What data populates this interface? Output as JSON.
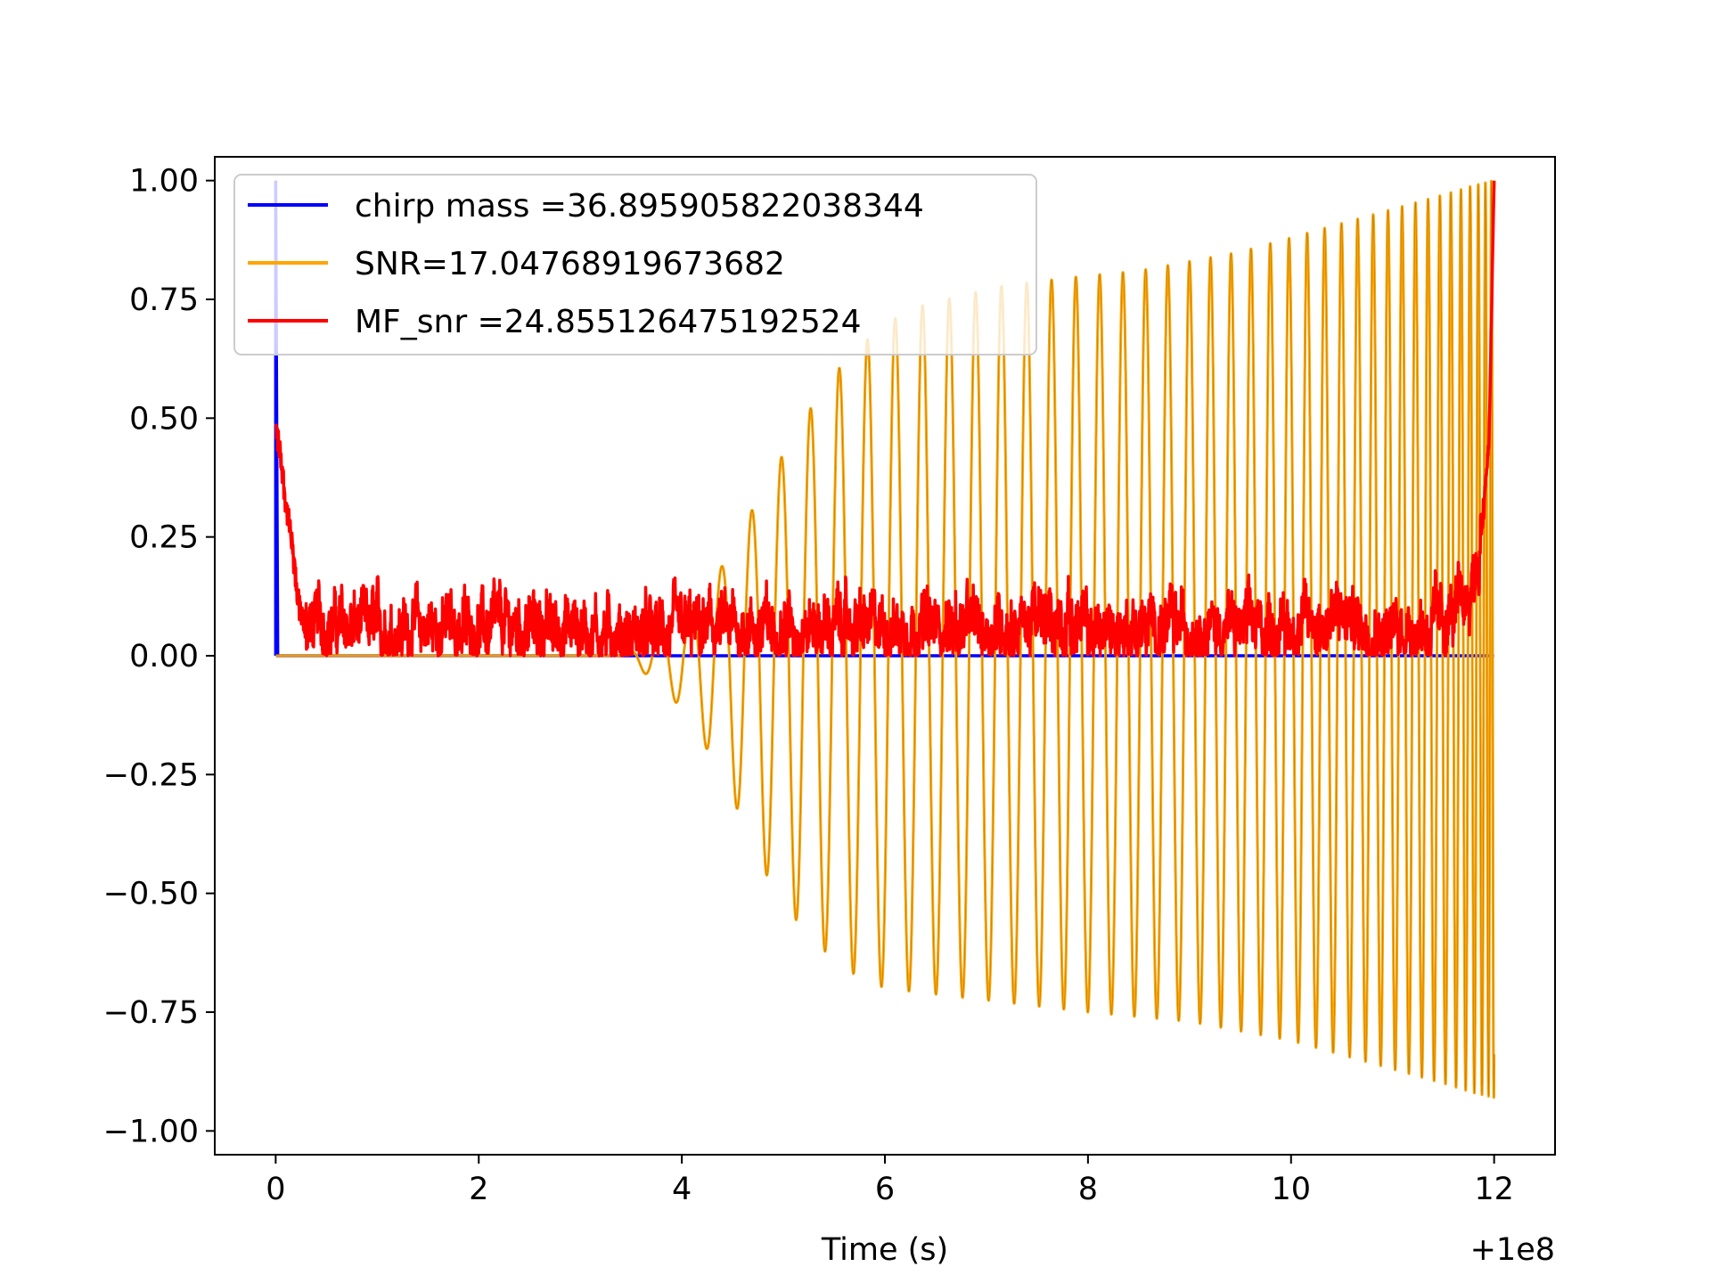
{
  "chart_data": {
    "type": "line",
    "title": "",
    "xlabel": "Time (s)",
    "ylabel": "",
    "x_offset_label": "+1e8",
    "xlim": [
      -0.6,
      12.6
    ],
    "ylim": [
      -1.05,
      1.05
    ],
    "x_ticks": [
      {
        "value": 0,
        "label": "0"
      },
      {
        "value": 2,
        "label": "2"
      },
      {
        "value": 4,
        "label": "4"
      },
      {
        "value": 6,
        "label": "6"
      },
      {
        "value": 8,
        "label": "8"
      },
      {
        "value": 10,
        "label": "10"
      },
      {
        "value": 12,
        "label": "12"
      }
    ],
    "y_ticks": [
      {
        "value": 1.0,
        "label": "1.00"
      },
      {
        "value": 0.75,
        "label": "0.75"
      },
      {
        "value": 0.5,
        "label": "0.50"
      },
      {
        "value": 0.25,
        "label": "0.25"
      },
      {
        "value": 0.0,
        "label": "0.00"
      },
      {
        "value": -0.25,
        "label": "−0.25"
      },
      {
        "value": -0.5,
        "label": "−0.50"
      },
      {
        "value": -0.75,
        "label": "−0.75"
      },
      {
        "value": -1.0,
        "label": "−1.00"
      }
    ],
    "grid": false,
    "legend_position": "top-left",
    "series": [
      {
        "name": "chirp mass =36.895905822038344",
        "color": "#0000ff",
        "x": [
          0,
          0,
          0.02,
          12.0
        ],
        "y": [
          0.0,
          1.0,
          0.0,
          0.0
        ]
      },
      {
        "name": "SNR=17.04768919673682",
        "color": "#ffa500",
        "description_points": "chirp waveform: flat until ~3.4 s, then oscillation growing in amplitude and frequency",
        "envelope_x": [
          0,
          3.4,
          3.6,
          4.0,
          4.4,
          4.8,
          5.2,
          5.6,
          6.0,
          6.4,
          6.8,
          7.2,
          7.6,
          8.0,
          8.5,
          9.0,
          9.5,
          10.0,
          10.5,
          11.0,
          11.5,
          11.8,
          12.0
        ],
        "envelope_upper": [
          0.0,
          0.0,
          0.02,
          0.08,
          0.19,
          0.35,
          0.5,
          0.62,
          0.7,
          0.74,
          0.76,
          0.78,
          0.79,
          0.8,
          0.81,
          0.83,
          0.85,
          0.88,
          0.91,
          0.94,
          0.97,
          0.99,
          1.0
        ],
        "envelope_lower": [
          0.0,
          0.0,
          -0.03,
          -0.11,
          -0.25,
          -0.45,
          -0.58,
          -0.66,
          -0.7,
          -0.71,
          -0.72,
          -0.73,
          -0.74,
          -0.75,
          -0.76,
          -0.77,
          -0.79,
          -0.81,
          -0.84,
          -0.87,
          -0.9,
          -0.92,
          -0.93
        ]
      },
      {
        "name": "MF_snr =24.855126475192524",
        "color": "#ff0000",
        "x": [
          0.0,
          0.05,
          0.1,
          0.15,
          0.2,
          0.25,
          0.3,
          0.4,
          0.6,
          1.0,
          2.0,
          3.0,
          3.5,
          4.0,
          5.0,
          6.0,
          7.0,
          7.8,
          8.0,
          9.0,
          10.0,
          10.5,
          11.0,
          11.5,
          11.7,
          11.85,
          11.95,
          12.0
        ],
        "y": [
          0.48,
          0.42,
          0.32,
          0.25,
          0.15,
          0.08,
          0.06,
          0.07,
          0.06,
          0.06,
          0.06,
          0.06,
          0.04,
          0.05,
          0.06,
          0.06,
          0.06,
          0.08,
          0.05,
          0.06,
          0.06,
          0.08,
          0.05,
          0.07,
          0.1,
          0.2,
          0.45,
          1.0
        ]
      }
    ]
  }
}
